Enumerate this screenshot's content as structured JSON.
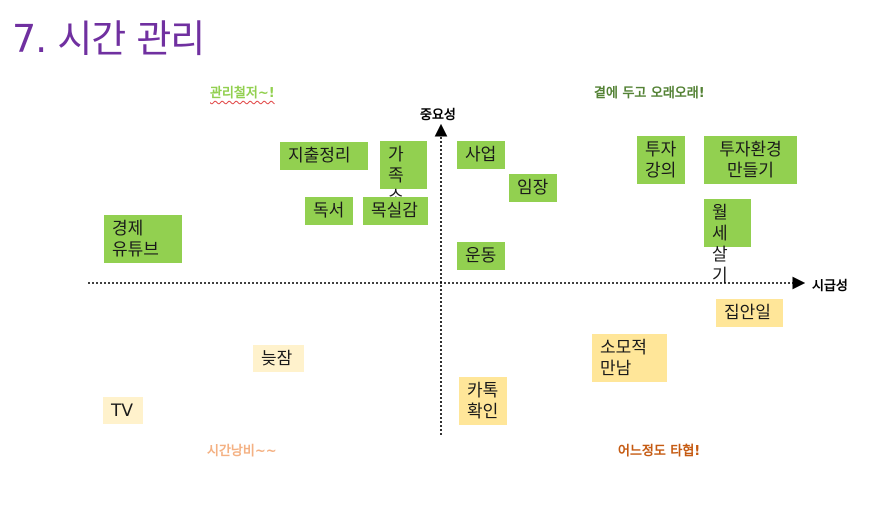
{
  "title": "7. 시간 관리",
  "axes": {
    "y_label": "중요성",
    "x_label": "시급성"
  },
  "quadrants": {
    "top_left": {
      "label": "관리철저~!",
      "color": "#92d050"
    },
    "top_right": {
      "label": "곁에 두고 오래오래!",
      "color": "#548235"
    },
    "bottom_left": {
      "label": "시간낭비~~",
      "color": "#f4b183"
    },
    "bottom_right": {
      "label": "어느정도 타협!",
      "color": "#c55a11"
    }
  },
  "notes": [
    {
      "id": "jichul",
      "text": "지출정리"
    },
    {
      "id": "gajok",
      "text": "가족\n소통"
    },
    {
      "id": "dokseo",
      "text": "독서"
    },
    {
      "id": "moksil",
      "text": "목실감"
    },
    {
      "id": "gyeongje",
      "text": "경제\n유튜브"
    },
    {
      "id": "saeop",
      "text": "사업"
    },
    {
      "id": "imjang",
      "text": "임장"
    },
    {
      "id": "undong",
      "text": "운동"
    },
    {
      "id": "tuja-gangui",
      "text": "투자\n강의"
    },
    {
      "id": "tuja-hwangyeong",
      "text": "투자환경\n만들기"
    },
    {
      "id": "wolse",
      "text": "월세\n살기"
    },
    {
      "id": "jibanil",
      "text": "집안일"
    },
    {
      "id": "somojeok",
      "text": "소모적\n만남"
    },
    {
      "id": "katok",
      "text": "카톡\n확인"
    },
    {
      "id": "neujjam",
      "text": "늦잠"
    },
    {
      "id": "tv",
      "text": "TV"
    }
  ]
}
